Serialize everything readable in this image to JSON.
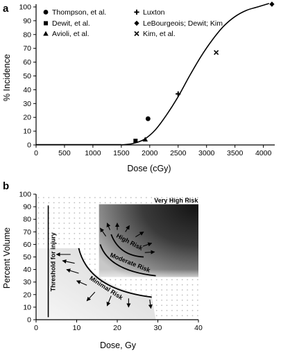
{
  "chart_data": [
    {
      "panel": "a",
      "type": "scatter",
      "xlabel": "Dose (cGy)",
      "ylabel": "% Incidence",
      "xlim": [
        0,
        4200
      ],
      "ylim": [
        0,
        100
      ],
      "xticks": [
        0,
        500,
        1000,
        1500,
        2000,
        2500,
        3000,
        3500,
        4000
      ],
      "yticks": [
        0,
        10,
        20,
        30,
        40,
        50,
        60,
        70,
        80,
        90,
        100
      ],
      "grid": false,
      "legend_position": "top-left",
      "series": [
        {
          "name": "Thompson, et al.",
          "marker": "circle",
          "points": [
            [
              1970,
              19
            ]
          ]
        },
        {
          "name": "Dewit, et al.",
          "marker": "square",
          "points": [
            [
              1750,
              3
            ]
          ]
        },
        {
          "name": "Avioli, et al.",
          "marker": "triangle",
          "points": [
            [
              1920,
              4
            ]
          ]
        },
        {
          "name": "Luxton",
          "marker": "plus",
          "points": [
            [
              2500,
              37
            ]
          ]
        },
        {
          "name": "LeBourgeois; Dewit; Kim",
          "marker": "diamond",
          "points": [
            [
              4150,
              102
            ]
          ]
        },
        {
          "name": "Kim, et al.",
          "marker": "cross",
          "points": [
            [
              3170,
              67
            ]
          ]
        }
      ],
      "fit_curve": {
        "type": "line",
        "points": [
          [
            1500,
            0
          ],
          [
            1700,
            1
          ],
          [
            1900,
            4
          ],
          [
            2100,
            11
          ],
          [
            2300,
            22
          ],
          [
            2500,
            35
          ],
          [
            2700,
            50
          ],
          [
            2900,
            64
          ],
          [
            3100,
            76
          ],
          [
            3300,
            86
          ],
          [
            3500,
            93
          ],
          [
            3700,
            97.5
          ],
          [
            3900,
            100
          ],
          [
            4100,
            102.5
          ]
        ]
      }
    },
    {
      "panel": "b",
      "type": "heatmap",
      "xlabel": "Dose, Gy",
      "ylabel": "Percent Volume",
      "xlim": [
        0,
        40
      ],
      "ylim": [
        0,
        100
      ],
      "xticks": [
        0,
        10,
        20,
        30,
        40
      ],
      "yticks": [
        0,
        10,
        20,
        30,
        40,
        50,
        60,
        70,
        80,
        90,
        100
      ],
      "threshold_label": "Threshold for injury",
      "threshold_dose": 3,
      "regions": {
        "very_high": "Very High Risk",
        "high": "High Risk",
        "moderate": "Moderate Risk",
        "minimal": "Minimal Risk"
      }
    }
  ],
  "colors": {
    "axis": "#000000",
    "text": "#000000",
    "dots": "#bbbbbb",
    "dark_region": "#1a1a1a",
    "light_region": "#ebebeb"
  }
}
